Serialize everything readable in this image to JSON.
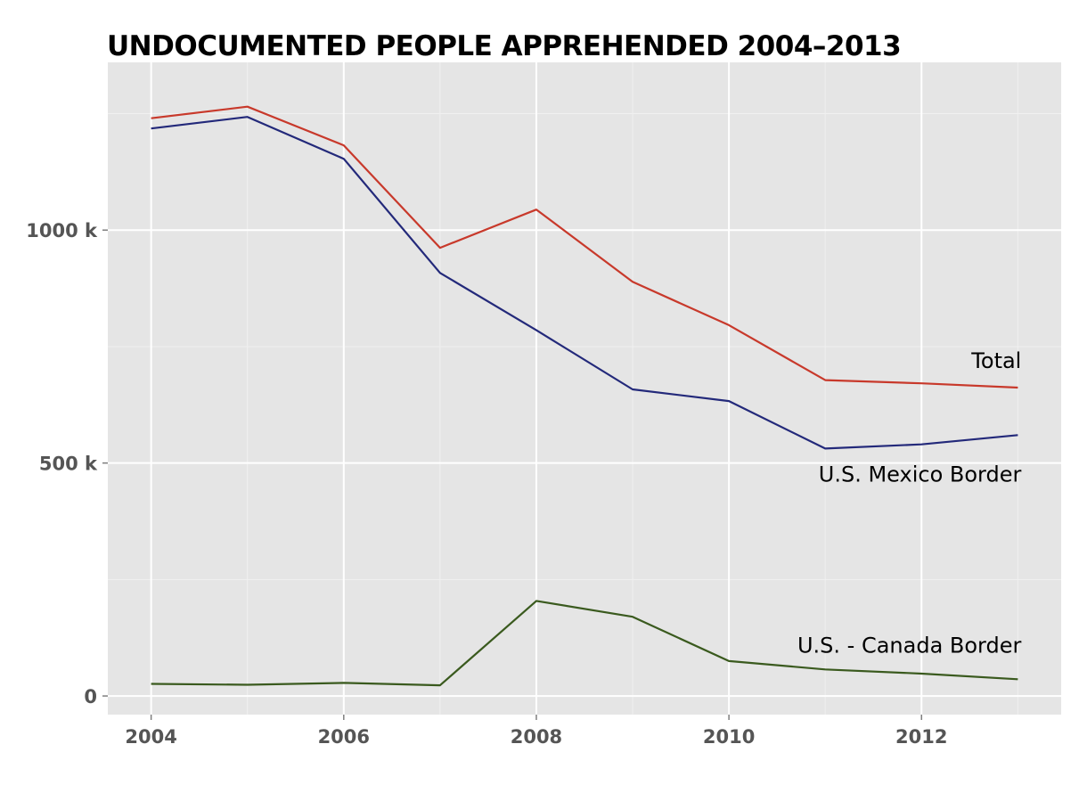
{
  "chart_data": {
    "type": "line",
    "title": "UNDOCUMENTED PEOPLE APPREHENDED 2004–2013",
    "xlabel": "",
    "ylabel": "",
    "x": [
      2004,
      2005,
      2006,
      2007,
      2008,
      2009,
      2010,
      2011,
      2012,
      2013
    ],
    "xlim": [
      2003.55,
      2013.45
    ],
    "ylim": [
      -40000,
      1360000
    ],
    "x_ticks": [
      {
        "value": 2004,
        "label": "2004"
      },
      {
        "value": 2006,
        "label": "2006"
      },
      {
        "value": 2008,
        "label": "2008"
      },
      {
        "value": 2010,
        "label": "2010"
      },
      {
        "value": 2012,
        "label": "2012"
      }
    ],
    "y_ticks": [
      {
        "value": 0,
        "label": "0"
      },
      {
        "value": 500000,
        "label": "500 k"
      },
      {
        "value": 1000000,
        "label": "1000 k"
      }
    ],
    "grid": true,
    "legend": "direct labels at right end of lines",
    "colors": {
      "panel_background": "#e5e5e5",
      "grid_major": "#ffffff",
      "grid_minor": "#f0f0f0",
      "tick_mark": "#7f7f7f"
    },
    "series": [
      {
        "name": "Total",
        "color": "#c8392b",
        "values": [
          1240000,
          1265000,
          1182000,
          962000,
          1044000,
          889000,
          796000,
          678000,
          671000,
          662000
        ]
      },
      {
        "name": "U.S. Mexico Border",
        "color": "#23297a",
        "values": [
          1218000,
          1243000,
          1153000,
          908000,
          785000,
          658000,
          633000,
          531000,
          540000,
          560000
        ]
      },
      {
        "name": "U.S. - Canada Border",
        "color": "#3a5a1e",
        "values": [
          26000,
          24000,
          28000,
          23000,
          204000,
          170000,
          75000,
          57000,
          48000,
          36000
        ]
      }
    ]
  }
}
